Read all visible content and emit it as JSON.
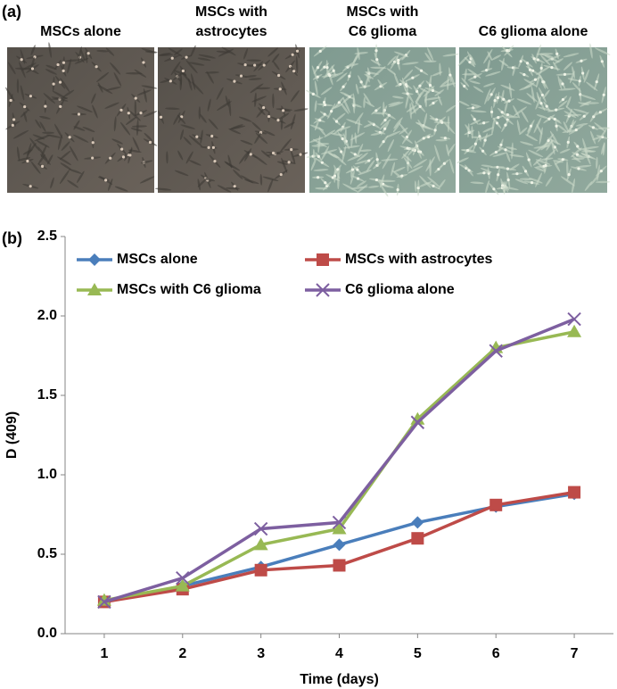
{
  "panel_a": {
    "tag": "(a)",
    "labels": [
      [
        "MSCs alone"
      ],
      [
        "MSCs with",
        "astrocytes"
      ],
      [
        "MSCs with",
        "C6 glioma"
      ],
      [
        "C6 glioma alone"
      ]
    ]
  },
  "panel_b": {
    "tag": "(b)"
  },
  "chart_data": {
    "type": "line",
    "x": [
      1,
      2,
      3,
      4,
      5,
      6,
      7
    ],
    "xlim": [
      0.5,
      7.5
    ],
    "xticks": [
      1,
      2,
      3,
      4,
      5,
      6,
      7
    ],
    "ylim": [
      0,
      2.5
    ],
    "yticks": [
      {
        "value": 0,
        "label": "0.0"
      },
      0.5,
      {
        "value": 1,
        "label": "1.0"
      },
      1.5,
      {
        "value": 2,
        "label": "2.0"
      },
      2.5
    ],
    "x_label": "Time (days)",
    "y_label": "D (409)",
    "grid": false,
    "legend": "top-left",
    "series": [
      {
        "name": "MSCs alone",
        "color": "#4a7ebb",
        "marker": "diamond",
        "values": [
          0.2,
          0.3,
          0.42,
          0.56,
          0.7,
          0.8,
          0.88
        ]
      },
      {
        "name": "MSCs with astrocytes",
        "color": "#be4b48",
        "marker": "square",
        "values": [
          0.2,
          0.28,
          0.4,
          0.43,
          0.6,
          0.81,
          0.89
        ]
      },
      {
        "name": "MSCs with C6 glioma",
        "color": "#98b954",
        "marker": "triangle",
        "values": [
          0.21,
          0.3,
          0.56,
          0.66,
          1.35,
          1.8,
          1.9
        ]
      },
      {
        "name": "C6 glioma alone",
        "color": "#7d5fa0",
        "marker": "x",
        "values": [
          0.2,
          0.35,
          0.66,
          0.7,
          1.33,
          1.78,
          1.98
        ]
      }
    ]
  }
}
